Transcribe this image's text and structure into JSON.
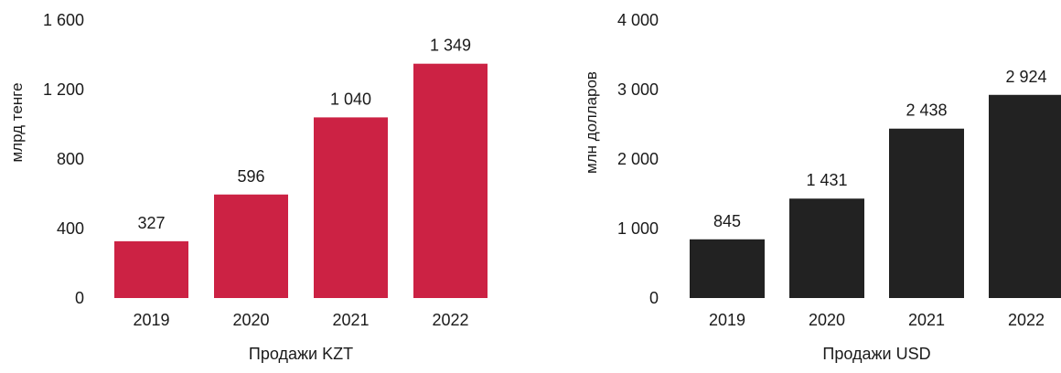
{
  "chart_data": [
    {
      "type": "bar",
      "categories": [
        "2019",
        "2020",
        "2021",
        "2022"
      ],
      "values": [
        327,
        596,
        1040,
        1349
      ],
      "value_labels": [
        "327",
        "596",
        "1 040",
        "1 349"
      ],
      "title": "",
      "xlabel": "Продажи KZT",
      "ylabel": "млрд тенге",
      "ylim": [
        0,
        1600
      ],
      "yticks": [
        0,
        400,
        800,
        1200,
        1600
      ],
      "ytick_labels": [
        "0",
        "400",
        "800",
        "1 200",
        "1 600"
      ],
      "grid": false,
      "legend": "none",
      "bar_color": "#cc2244"
    },
    {
      "type": "bar",
      "categories": [
        "2019",
        "2020",
        "2021",
        "2022"
      ],
      "values": [
        845,
        1431,
        2438,
        2924
      ],
      "value_labels": [
        "845",
        "1 431",
        "2 438",
        "2 924"
      ],
      "title": "",
      "xlabel": "Продажи USD",
      "ylabel": "млн долларов",
      "ylim": [
        0,
        4000
      ],
      "yticks": [
        0,
        1000,
        2000,
        3000,
        4000
      ],
      "ytick_labels": [
        "0",
        "1 000",
        "2 000",
        "3 000",
        "4 000"
      ],
      "grid": false,
      "legend": "none",
      "bar_color": "#222222"
    }
  ]
}
